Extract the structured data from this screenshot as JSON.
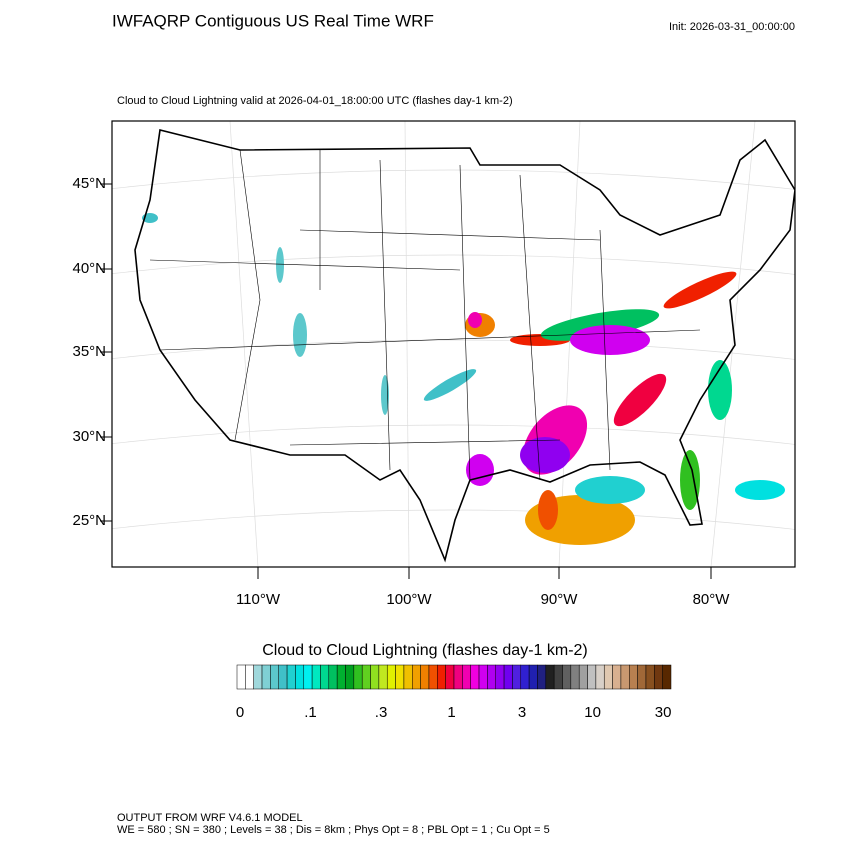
{
  "header": {
    "title": "IWFAQRP Contiguous US Real Time WRF",
    "init": "Init: 2026-03-31_00:00:00",
    "subtitle": "Cloud to Cloud Lightning valid at 2026-04-01_18:00:00 UTC   (flashes day-1 km-2)"
  },
  "map": {
    "lat_labels": [
      "45°N",
      "40°N",
      "35°N",
      "30°N",
      "25°N"
    ],
    "lon_labels": [
      "110°W",
      "100°W",
      "90°W",
      "80°W"
    ]
  },
  "colorbar": {
    "title": "Cloud to Cloud Lightning  (flashes day-1 km-2)",
    "labels": [
      "0",
      ".1",
      ".3",
      "1",
      "3",
      "10",
      "30"
    ],
    "colors": [
      "#ffffff",
      "#ffffff",
      "#a0d8dc",
      "#7fd0d4",
      "#5cc8cc",
      "#40c0c8",
      "#20d0d0",
      "#00e0e0",
      "#00f0f0",
      "#00e8c0",
      "#00d890",
      "#00c060",
      "#00b030",
      "#00a020",
      "#30c020",
      "#60d020",
      "#90e020",
      "#c0e820",
      "#e0f000",
      "#f0e000",
      "#f0c000",
      "#f0a000",
      "#f08000",
      "#f05000",
      "#f02000",
      "#f00040",
      "#f00080",
      "#f000b0",
      "#f000e0",
      "#d000f0",
      "#b000f0",
      "#9000f0",
      "#7000f0",
      "#5020e0",
      "#3020d0",
      "#2020b0",
      "#202080",
      "#202020",
      "#404040",
      "#606060",
      "#808080",
      "#a0a0a0",
      "#c0c0c0",
      "#d8d0c8",
      "#e0c8b0",
      "#d8b090",
      "#c89870",
      "#b88050",
      "#a06838",
      "#885020",
      "#703810",
      "#582800"
    ]
  },
  "footer": {
    "line1": "OUTPUT FROM WRF V4.6.1 MODEL",
    "line2": "WE = 580 ; SN = 380 ; Levels = 38 ; Dis = 8km ; Phys Opt = 8 ; PBL Opt = 1 ; Cu Opt = 5"
  }
}
